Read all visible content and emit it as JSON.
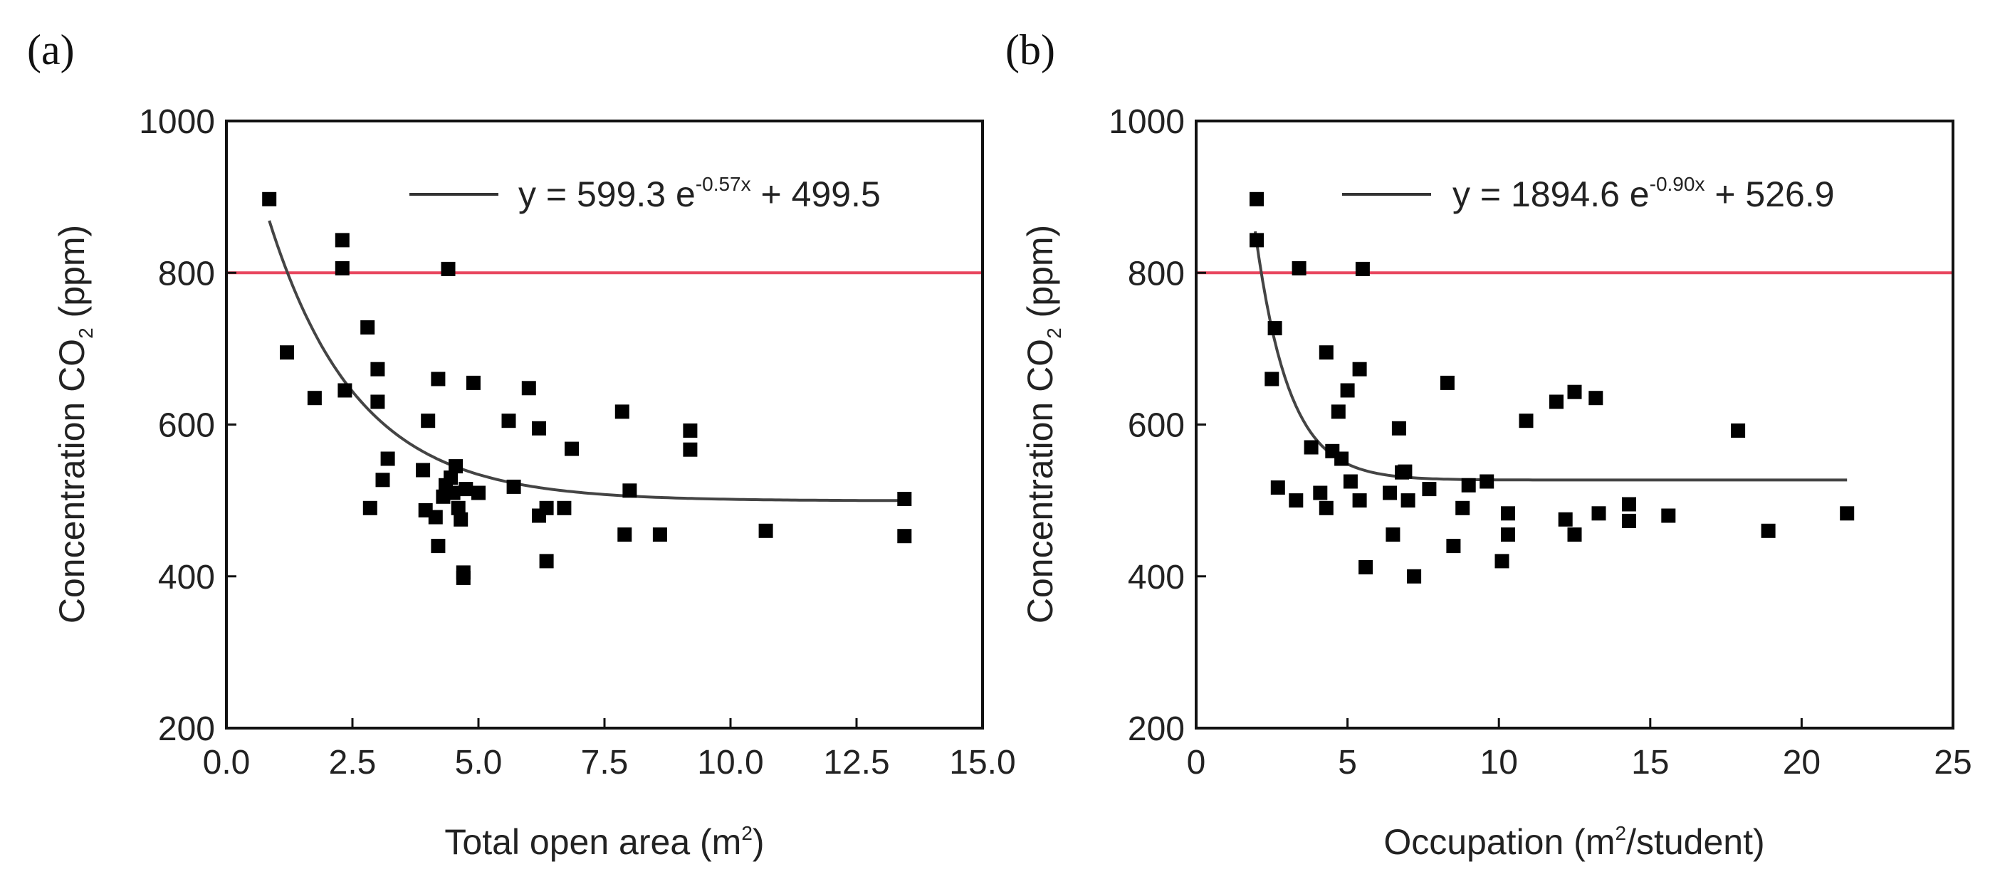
{
  "chart_data": [
    {
      "panel_label": "(a)",
      "type": "scatter",
      "xlabel": "Total open area (m",
      "xlabel_sup": "2",
      "xlabel_tail": ")",
      "ylabel": "Concentration CO",
      "ylabel_sub": "2",
      "ylabel_tail": " (ppm)",
      "xlim": [
        0,
        15
      ],
      "ylim": [
        200,
        1000
      ],
      "xticks": [
        0,
        2.5,
        5,
        7.5,
        10,
        12.5,
        15
      ],
      "xtick_labels": [
        "0.0",
        "2.5",
        "5.0",
        "7.5",
        "10.0",
        "12.5",
        "15.0"
      ],
      "yticks": [
        200,
        400,
        600,
        800,
        1000
      ],
      "ytick_labels": [
        "200",
        "400",
        "600",
        "800",
        "1000"
      ],
      "threshold": 800,
      "threshold_color": "#e8475f",
      "fit": {
        "a": 599.3,
        "b": 0.57,
        "c": 499.5,
        "x_start": 0.85,
        "x_end": 13.5
      },
      "legend": {
        "prefix": "y = 599.3 e",
        "exponent": "-0.57x",
        "suffix": " + 499.5",
        "position": "top-right"
      },
      "points": [
        [
          0.85,
          897
        ],
        [
          1.2,
          695
        ],
        [
          1.75,
          635
        ],
        [
          2.3,
          843
        ],
        [
          2.3,
          806
        ],
        [
          2.35,
          645
        ],
        [
          2.8,
          728
        ],
        [
          2.85,
          490
        ],
        [
          3.0,
          673
        ],
        [
          3.0,
          630
        ],
        [
          3.1,
          527
        ],
        [
          3.2,
          555
        ],
        [
          3.9,
          540
        ],
        [
          3.95,
          487
        ],
        [
          4.0,
          605
        ],
        [
          4.15,
          478
        ],
        [
          4.2,
          660
        ],
        [
          4.2,
          440
        ],
        [
          4.3,
          505
        ],
        [
          4.35,
          520
        ],
        [
          4.4,
          805
        ],
        [
          4.45,
          530
        ],
        [
          4.5,
          510
        ],
        [
          4.55,
          545
        ],
        [
          4.6,
          490
        ],
        [
          4.65,
          475
        ],
        [
          4.7,
          405
        ],
        [
          4.7,
          398
        ],
        [
          4.75,
          515
        ],
        [
          4.9,
          655
        ],
        [
          5.0,
          510
        ],
        [
          5.6,
          605
        ],
        [
          5.7,
          518
        ],
        [
          6.0,
          648
        ],
        [
          6.2,
          595
        ],
        [
          6.2,
          480
        ],
        [
          6.35,
          490
        ],
        [
          6.35,
          420
        ],
        [
          6.7,
          490
        ],
        [
          6.85,
          568
        ],
        [
          7.85,
          617
        ],
        [
          7.9,
          455
        ],
        [
          8.0,
          513
        ],
        [
          8.6,
          455
        ],
        [
          9.2,
          592
        ],
        [
          9.2,
          567
        ],
        [
          10.7,
          460
        ],
        [
          13.45,
          502
        ],
        [
          13.45,
          453
        ]
      ]
    },
    {
      "panel_label": "(b)",
      "type": "scatter",
      "xlabel": "Occupation (m",
      "xlabel_sup": "2",
      "xlabel_tail": "/student)",
      "ylabel": "Concentration CO",
      "ylabel_sub": "2",
      "ylabel_tail": " (ppm)",
      "xlim": [
        0,
        25
      ],
      "ylim": [
        200,
        1000
      ],
      "xticks": [
        0,
        5,
        10,
        15,
        20,
        25
      ],
      "xtick_labels": [
        "0",
        "5",
        "10",
        "15",
        "20",
        "25"
      ],
      "yticks": [
        200,
        400,
        600,
        800,
        1000
      ],
      "ytick_labels": [
        "200",
        "400",
        "600",
        "800",
        "1000"
      ],
      "threshold": 800,
      "threshold_color": "#e8475f",
      "fit": {
        "a": 1894.6,
        "b": 0.9,
        "c": 526.9,
        "x_start": 1.95,
        "x_end": 21.5
      },
      "legend": {
        "prefix": "y = 1894.6 e",
        "exponent": "-0.90x",
        "suffix": " + 526.9",
        "position": "top-right"
      },
      "points": [
        [
          2.0,
          897
        ],
        [
          2.0,
          843
        ],
        [
          2.5,
          660
        ],
        [
          2.6,
          727
        ],
        [
          2.7,
          517
        ],
        [
          3.3,
          500
        ],
        [
          3.4,
          806
        ],
        [
          3.8,
          570
        ],
        [
          4.1,
          510
        ],
        [
          4.3,
          695
        ],
        [
          4.3,
          490
        ],
        [
          4.5,
          565
        ],
        [
          4.7,
          617
        ],
        [
          4.8,
          555
        ],
        [
          5.0,
          645
        ],
        [
          5.1,
          525
        ],
        [
          5.4,
          673
        ],
        [
          5.5,
          805
        ],
        [
          5.4,
          500
        ],
        [
          5.6,
          412
        ],
        [
          6.4,
          510
        ],
        [
          6.5,
          455
        ],
        [
          6.7,
          595
        ],
        [
          6.8,
          537
        ],
        [
          6.9,
          538
        ],
        [
          7.0,
          500
        ],
        [
          7.2,
          400
        ],
        [
          7.7,
          515
        ],
        [
          8.3,
          655
        ],
        [
          8.5,
          440
        ],
        [
          8.8,
          490
        ],
        [
          9.0,
          520
        ],
        [
          9.6,
          525
        ],
        [
          10.1,
          420
        ],
        [
          10.3,
          455
        ],
        [
          10.3,
          483
        ],
        [
          10.9,
          605
        ],
        [
          11.9,
          630
        ],
        [
          12.2,
          475
        ],
        [
          12.5,
          643
        ],
        [
          12.5,
          455
        ],
        [
          13.2,
          635
        ],
        [
          13.3,
          483
        ],
        [
          14.3,
          473
        ],
        [
          14.3,
          495
        ],
        [
          15.6,
          480
        ],
        [
          17.9,
          592
        ],
        [
          18.9,
          460
        ],
        [
          21.5,
          483
        ]
      ]
    }
  ]
}
